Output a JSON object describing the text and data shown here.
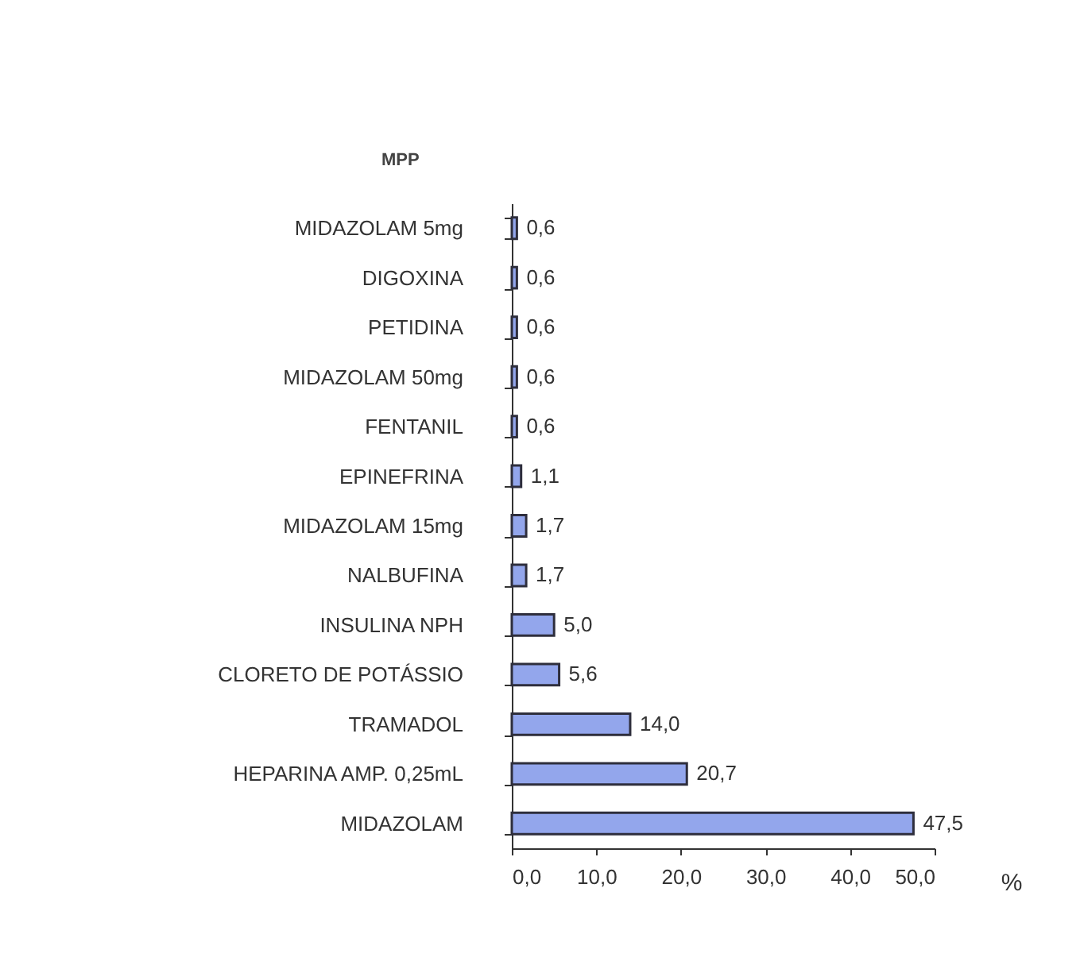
{
  "chart_data": {
    "type": "bar",
    "orientation": "horizontal",
    "title": "MPP",
    "xlabel": "%",
    "categories": [
      "MIDAZOLAM 5mg",
      "DIGOXINA",
      "PETIDINA",
      "MIDAZOLAM 50mg",
      "FENTANIL",
      "EPINEFRINA",
      "MIDAZOLAM 15mg",
      "NALBUFINA",
      "INSULINA NPH",
      "CLORETO DE POTÁSSIO",
      "TRAMADOL",
      "HEPARINA AMP. 0,25mL",
      "MIDAZOLAM"
    ],
    "series": [
      {
        "color": "#93a6ec",
        "values": [
          0.6,
          0.6,
          0.6,
          0.6,
          0.6,
          1.1,
          1.7,
          1.7,
          5.0,
          5.6,
          14.0,
          20.7,
          47.5
        ],
        "value_labels": [
          "0,6",
          "0,6",
          "0,6",
          "0,6",
          "0,6",
          "1,1",
          "1,7",
          "1,7",
          "5,0",
          "5,6",
          "14,0",
          "20,7",
          "47,5"
        ]
      }
    ],
    "xlim": [
      0,
      50
    ],
    "xticks": [
      {
        "value": 0,
        "label": "0,0"
      },
      {
        "value": 10,
        "label": "10,0"
      },
      {
        "value": 20,
        "label": "20,0"
      },
      {
        "value": 30,
        "label": "30,0"
      },
      {
        "value": 40,
        "label": "40,0"
      },
      {
        "value": 50,
        "label": "50,0"
      }
    ],
    "grid": false
  }
}
